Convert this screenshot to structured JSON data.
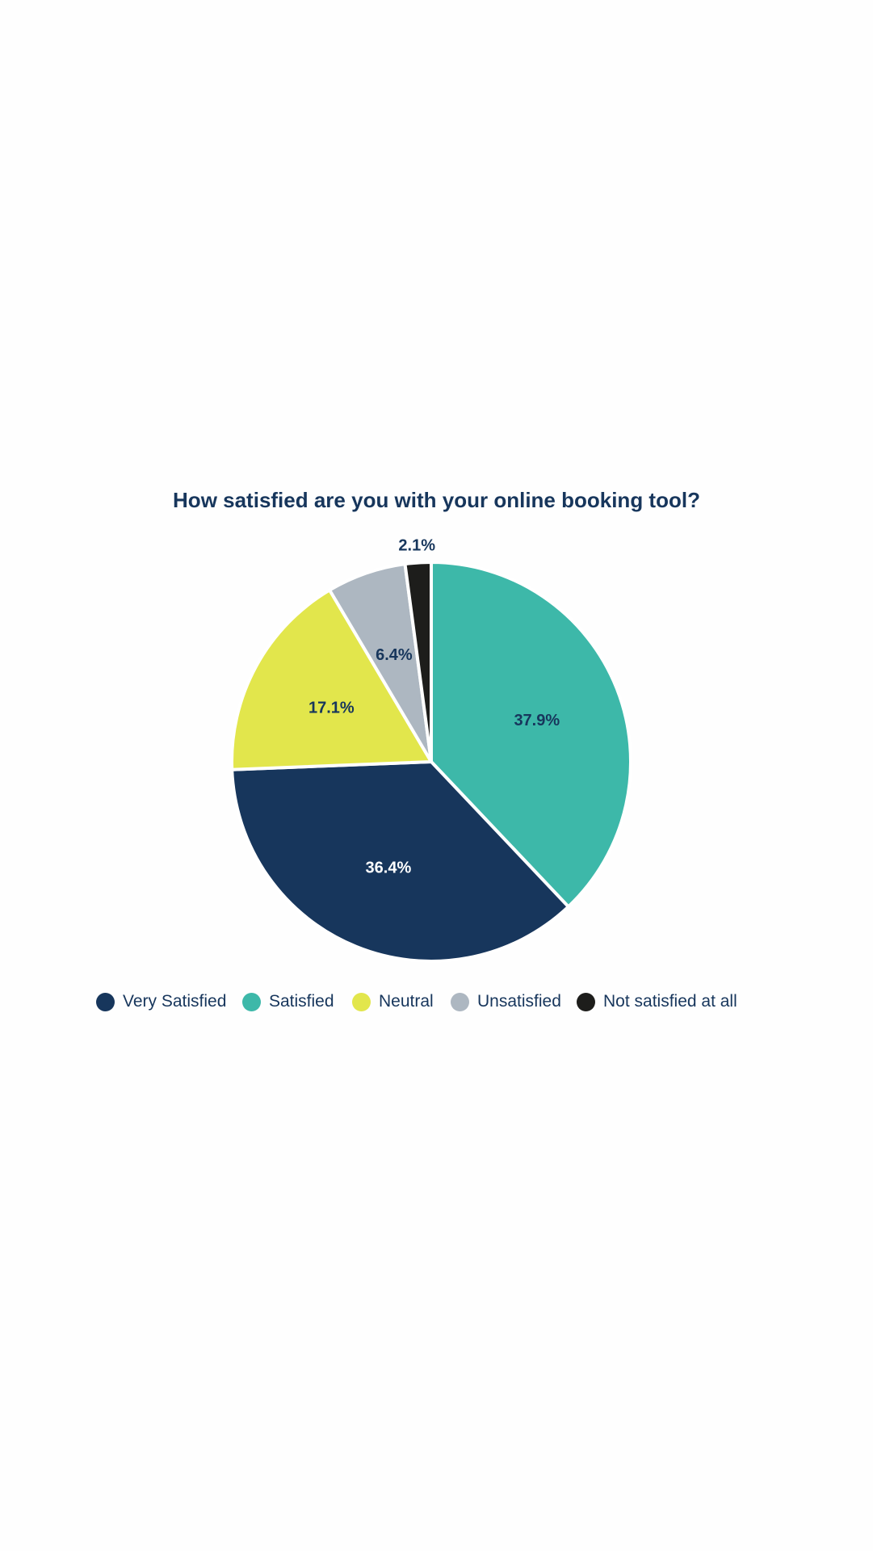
{
  "chart_data": {
    "type": "pie",
    "title": "How satisfied are you with your online booking tool?",
    "slices": [
      {
        "name": "Satisfied",
        "value": 37.9,
        "label": "37.9%",
        "color": "#3db8a9",
        "label_color": "#17365c"
      },
      {
        "name": "Very Satisfied",
        "value": 36.4,
        "label": "36.4%",
        "color": "#17365c",
        "label_color": "#ffffff"
      },
      {
        "name": "Neutral",
        "value": 17.1,
        "label": "17.1%",
        "color": "#e2e64c",
        "label_color": "#17365c"
      },
      {
        "name": "Unsatisfied",
        "value": 6.4,
        "label": "6.4%",
        "color": "#adb7c1",
        "label_color": "#17365c"
      },
      {
        "name": "Not satisfied at all",
        "value": 2.1,
        "label": "2.1%",
        "color": "#1d1d1b",
        "label_color": "#17365c"
      }
    ],
    "start": "top, clockwise",
    "legend": {
      "placement": "bottom",
      "entries": [
        {
          "name": "Very Satisfied",
          "color": "#17365c"
        },
        {
          "name": "Satisfied",
          "color": "#3db8a9"
        },
        {
          "name": "Neutral",
          "color": "#e2e64c"
        },
        {
          "name": "Unsatisfied",
          "color": "#adb7c1"
        },
        {
          "name": "Not satisfied at all",
          "color": "#1d1d1b"
        }
      ]
    }
  }
}
